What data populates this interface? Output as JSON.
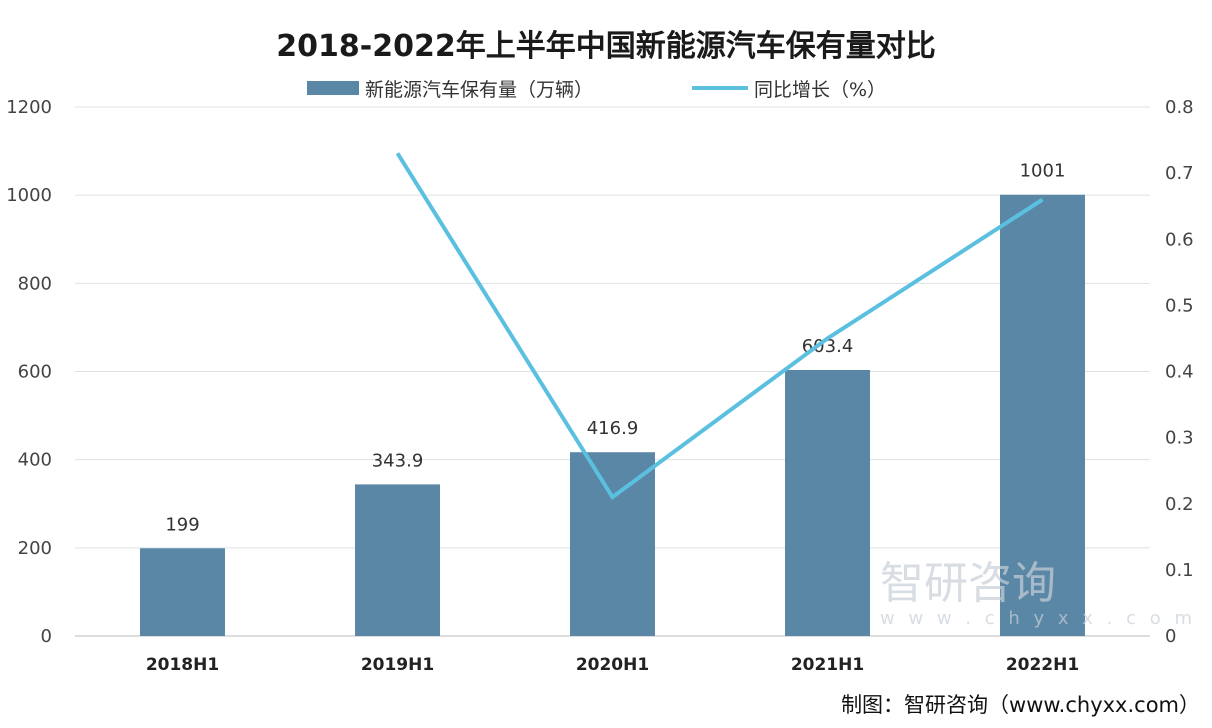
{
  "chart_data": {
    "type": "bar+line",
    "title": "2018-2022年上半年中国新能源汽车保有量对比",
    "categories": [
      "2018H1",
      "2019H1",
      "2020H1",
      "2021H1",
      "2022H1"
    ],
    "series": [
      {
        "name": "新能源汽车保有量（万辆）",
        "type": "bar",
        "axis": "left",
        "values": [
          199,
          343.9,
          416.9,
          603.4,
          1001
        ],
        "labels": [
          "199",
          "343.9",
          "416.9",
          "603.4",
          "1001"
        ],
        "color": "#5b87a6"
      },
      {
        "name": "同比增长（%）",
        "type": "line",
        "axis": "right",
        "values": [
          null,
          0.73,
          0.21,
          0.45,
          0.66
        ],
        "color": "#5bc0e0"
      }
    ],
    "y_left": {
      "range": [
        0,
        1200
      ],
      "ticks": [
        "0",
        "200",
        "400",
        "600",
        "800",
        "1000",
        "1200"
      ]
    },
    "y_right": {
      "range": [
        0,
        0.8
      ],
      "ticks": [
        "0",
        "0.1",
        "0.2",
        "0.3",
        "0.4",
        "0.5",
        "0.6",
        "0.7",
        "0.8"
      ]
    },
    "grid": true,
    "legend_position": "top"
  },
  "footer": "制图：智研咨询（www.chyxx.com）",
  "watermark": {
    "text": "智研咨询",
    "url": "w w w . c h y x x . c o m"
  }
}
